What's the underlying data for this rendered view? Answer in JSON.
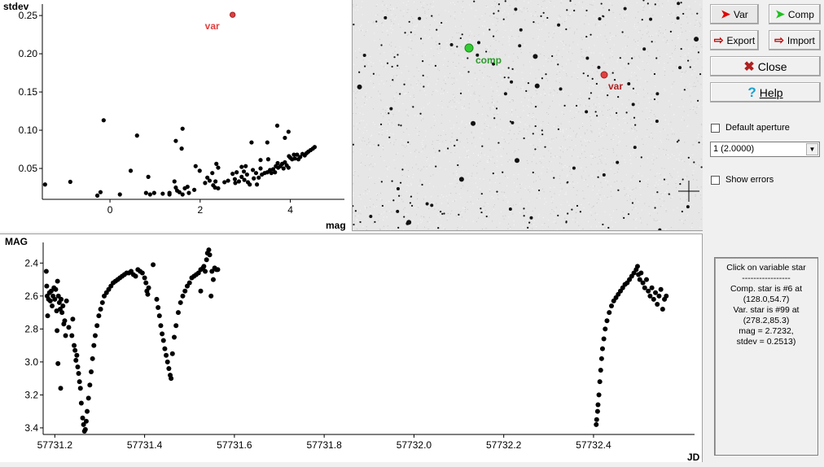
{
  "sidebar": {
    "var_label": "Var",
    "comp_label": "Comp",
    "export_label": "Export",
    "import_label": "Import",
    "close_label": "Close",
    "help_label": "Help",
    "default_aperture_label": "Default aperture",
    "default_aperture_checked": false,
    "aperture_value": "1 (2.0000)",
    "show_errors_label": "Show errors",
    "show_errors_checked": false,
    "info_lines": [
      "Click on variable star",
      "-----------------",
      "Comp. star is #6 at",
      "(128.0,54.7)",
      "Var. star is #99 at",
      "(278.2,85.3)",
      "mag = 2.7232,",
      "stdev = 0.2513)"
    ]
  },
  "image": {
    "comp_label": "comp",
    "var_label": "var",
    "comp_color": "#33cc33",
    "var_color": "#e04040"
  },
  "chart_data": [
    {
      "type": "scatter",
      "xlabel": "mag",
      "ylabel": "stdev",
      "xlim": [
        -1.5,
        5.2
      ],
      "ylim": [
        0.0096,
        0.265
      ],
      "xticks": [
        "0",
        "2",
        "4"
      ],
      "xtick_values": [
        0,
        2,
        4
      ],
      "yticks": [
        "0.05",
        "0.10",
        "0.15",
        "0.20",
        "0.25"
      ],
      "ytick_values": [
        0.05,
        0.1,
        0.15,
        0.2,
        0.25
      ],
      "highlight": {
        "label": "var",
        "mag": 2.72,
        "stdev": 0.251,
        "color": "#e04040"
      },
      "points": [
        [
          -1.44,
          0.029
        ],
        [
          -0.88,
          0.0325
        ],
        [
          -0.28,
          0.0145
        ],
        [
          -0.21,
          0.019
        ],
        [
          -0.14,
          0.113
        ],
        [
          0.22,
          0.016
        ],
        [
          0.46,
          0.047
        ],
        [
          0.6,
          0.093
        ],
        [
          0.8,
          0.018
        ],
        [
          0.85,
          0.039
        ],
        [
          0.89,
          0.016
        ],
        [
          0.98,
          0.018
        ],
        [
          1.17,
          0.017
        ],
        [
          1.32,
          0.018
        ],
        [
          1.32,
          0.016
        ],
        [
          1.43,
          0.033
        ],
        [
          1.46,
          0.086
        ],
        [
          1.46,
          0.025
        ],
        [
          1.49,
          0.021
        ],
        [
          1.54,
          0.019
        ],
        [
          1.59,
          0.076
        ],
        [
          1.61,
          0.102
        ],
        [
          1.61,
          0.016
        ],
        [
          1.66,
          0.024
        ],
        [
          1.72,
          0.026
        ],
        [
          1.75,
          0.018
        ],
        [
          1.87,
          0.022
        ],
        [
          1.9,
          0.053
        ],
        [
          1.99,
          0.047
        ],
        [
          2.11,
          0.031
        ],
        [
          2.16,
          0.038
        ],
        [
          2.21,
          0.034
        ],
        [
          2.27,
          0.044
        ],
        [
          2.29,
          0.028
        ],
        [
          2.34,
          0.033
        ],
        [
          2.33,
          0.025
        ],
        [
          2.36,
          0.056
        ],
        [
          2.4,
          0.051
        ],
        [
          2.4,
          0.024
        ],
        [
          2.54,
          0.032
        ],
        [
          2.62,
          0.034
        ],
        [
          2.72,
          0.043
        ],
        [
          2.77,
          0.036
        ],
        [
          2.81,
          0.045
        ],
        [
          2.78,
          0.031
        ],
        [
          2.86,
          0.033
        ],
        [
          2.92,
          0.052
        ],
        [
          2.92,
          0.039
        ],
        [
          2.97,
          0.046
        ],
        [
          3.01,
          0.053
        ],
        [
          2.98,
          0.035
        ],
        [
          3.04,
          0.042
        ],
        [
          3.06,
          0.032
        ],
        [
          3.1,
          0.029
        ],
        [
          3.14,
          0.084
        ],
        [
          3.17,
          0.048
        ],
        [
          3.19,
          0.037
        ],
        [
          3.24,
          0.044
        ],
        [
          3.26,
          0.029
        ],
        [
          3.3,
          0.038
        ],
        [
          3.34,
          0.061
        ],
        [
          3.34,
          0.05
        ],
        [
          3.37,
          0.042
        ],
        [
          3.43,
          0.044
        ],
        [
          3.49,
          0.084
        ],
        [
          3.51,
          0.062
        ],
        [
          3.49,
          0.045
        ],
        [
          3.55,
          0.048
        ],
        [
          3.58,
          0.044
        ],
        [
          3.62,
          0.049
        ],
        [
          3.66,
          0.045
        ],
        [
          3.68,
          0.053
        ],
        [
          3.71,
          0.106
        ],
        [
          3.72,
          0.057
        ],
        [
          3.73,
          0.051
        ],
        [
          3.78,
          0.053
        ],
        [
          3.82,
          0.056
        ],
        [
          3.85,
          0.05
        ],
        [
          3.88,
          0.09
        ],
        [
          3.88,
          0.058
        ],
        [
          3.92,
          0.054
        ],
        [
          3.96,
          0.098
        ],
        [
          3.96,
          0.051
        ],
        [
          3.97,
          0.066
        ],
        [
          4.0,
          0.064
        ],
        [
          4.04,
          0.062
        ],
        [
          4.08,
          0.068
        ],
        [
          4.1,
          0.063
        ],
        [
          4.15,
          0.068
        ],
        [
          4.18,
          0.062
        ],
        [
          4.22,
          0.065
        ],
        [
          4.27,
          0.069
        ],
        [
          4.32,
          0.067
        ],
        [
          4.36,
          0.07
        ],
        [
          4.4,
          0.072
        ],
        [
          4.45,
          0.074
        ],
        [
          4.5,
          0.076
        ],
        [
          4.54,
          0.078
        ]
      ]
    },
    {
      "type": "scatter",
      "xlabel": "JD",
      "ylabel": "MAG",
      "xlim": [
        57731.174,
        57732.625
      ],
      "ylim": [
        2.275,
        3.44
      ],
      "y_inverted": true,
      "xticks": [
        "57731.2",
        "57731.4",
        "57731.6",
        "57731.8",
        "57732.0",
        "57732.2",
        "57732.4"
      ],
      "xtick_values": [
        57731.2,
        57731.4,
        57731.6,
        57731.8,
        57732.0,
        57732.2,
        57732.4
      ],
      "yticks": [
        "2.4",
        "2.6",
        "2.8",
        "3.0",
        "3.2",
        "3.4"
      ],
      "ytick_values": [
        2.4,
        2.6,
        2.8,
        3.0,
        3.2,
        3.4
      ],
      "points": [
        [
          57731.181,
          2.45
        ],
        [
          57731.182,
          2.54
        ],
        [
          57731.183,
          2.6
        ],
        [
          57731.184,
          2.72
        ],
        [
          57731.186,
          2.62
        ],
        [
          57731.188,
          2.58
        ],
        [
          57731.19,
          2.63
        ],
        [
          57731.192,
          2.57
        ],
        [
          57731.194,
          2.66
        ],
        [
          57731.196,
          2.6
        ],
        [
          57731.198,
          2.55
        ],
        [
          57731.2,
          2.62
        ],
        [
          57731.202,
          2.56
        ],
        [
          57731.204,
          2.69
        ],
        [
          57731.205,
          2.81
        ],
        [
          57731.206,
          2.51
        ],
        [
          57731.207,
          3.01
        ],
        [
          57731.208,
          2.6
        ],
        [
          57731.21,
          2.64
        ],
        [
          57731.212,
          2.68
        ],
        [
          57731.213,
          3.16
        ],
        [
          57731.214,
          2.62
        ],
        [
          57731.216,
          2.7
        ],
        [
          57731.218,
          2.66
        ],
        [
          57731.22,
          2.77
        ],
        [
          57731.222,
          2.75
        ],
        [
          57731.224,
          2.84
        ],
        [
          57731.226,
          2.63
        ],
        [
          57731.231,
          2.79
        ],
        [
          57731.238,
          2.84
        ],
        [
          57731.24,
          2.74
        ],
        [
          57731.243,
          2.9
        ],
        [
          57731.245,
          2.93
        ],
        [
          57731.247,
          2.99
        ],
        [
          57731.249,
          2.96
        ],
        [
          57731.251,
          3.03
        ],
        [
          57731.253,
          3.07
        ],
        [
          57731.255,
          3.12
        ],
        [
          57731.257,
          3.16
        ],
        [
          57731.259,
          3.25
        ],
        [
          57731.262,
          3.34
        ],
        [
          57731.264,
          3.38
        ],
        [
          57731.266,
          3.42
        ],
        [
          57731.268,
          3.41
        ],
        [
          57731.27,
          3.36
        ],
        [
          57731.272,
          3.3
        ],
        [
          57731.275,
          3.22
        ],
        [
          57731.278,
          3.14
        ],
        [
          57731.281,
          3.06
        ],
        [
          57731.284,
          2.98
        ],
        [
          57731.287,
          2.9
        ],
        [
          57731.29,
          2.84
        ],
        [
          57731.294,
          2.78
        ],
        [
          57731.298,
          2.72
        ],
        [
          57731.302,
          2.68
        ],
        [
          57731.306,
          2.64
        ],
        [
          57731.31,
          2.6
        ],
        [
          57731.315,
          2.58
        ],
        [
          57731.32,
          2.56
        ],
        [
          57731.325,
          2.54
        ],
        [
          57731.33,
          2.52
        ],
        [
          57731.335,
          2.51
        ],
        [
          57731.34,
          2.5
        ],
        [
          57731.345,
          2.49
        ],
        [
          57731.35,
          2.48
        ],
        [
          57731.355,
          2.47
        ],
        [
          57731.36,
          2.46
        ],
        [
          57731.365,
          2.46
        ],
        [
          57731.37,
          2.45
        ],
        [
          57731.375,
          2.47
        ],
        [
          57731.38,
          2.48
        ],
        [
          57731.385,
          2.44
        ],
        [
          57731.39,
          2.45
        ],
        [
          57731.395,
          2.46
        ],
        [
          57731.4,
          2.49
        ],
        [
          57731.403,
          2.52
        ],
        [
          57731.405,
          2.57
        ],
        [
          57731.407,
          2.59
        ],
        [
          57731.409,
          2.55
        ],
        [
          57731.419,
          2.41
        ],
        [
          57731.427,
          2.62
        ],
        [
          57731.43,
          2.67
        ],
        [
          57731.433,
          2.72
        ],
        [
          57731.436,
          2.78
        ],
        [
          57731.439,
          2.83
        ],
        [
          57731.442,
          2.87
        ],
        [
          57731.445,
          2.92
        ],
        [
          57731.448,
          2.96
        ],
        [
          57731.451,
          3.0
        ],
        [
          57731.454,
          3.04
        ],
        [
          57731.457,
          3.08
        ],
        [
          57731.459,
          3.1
        ],
        [
          57731.462,
          2.95
        ],
        [
          57731.466,
          2.85
        ],
        [
          57731.47,
          2.78
        ],
        [
          57731.475,
          2.7
        ],
        [
          57731.48,
          2.64
        ],
        [
          57731.485,
          2.6
        ],
        [
          57731.49,
          2.57
        ],
        [
          57731.495,
          2.54
        ],
        [
          57731.5,
          2.52
        ],
        [
          57731.505,
          2.49
        ],
        [
          57731.51,
          2.48
        ],
        [
          57731.515,
          2.47
        ],
        [
          57731.52,
          2.46
        ],
        [
          57731.525,
          2.44
        ],
        [
          57731.525,
          2.57
        ],
        [
          57731.53,
          2.43
        ],
        [
          57731.532,
          2.42
        ],
        [
          57731.535,
          2.45
        ],
        [
          57731.538,
          2.38
        ],
        [
          57731.54,
          2.34
        ],
        [
          57731.543,
          2.32
        ],
        [
          57731.545,
          2.35
        ],
        [
          57731.548,
          2.6
        ],
        [
          57731.55,
          2.45
        ],
        [
          57731.553,
          2.5
        ],
        [
          57731.556,
          2.43
        ],
        [
          57731.56,
          2.44
        ],
        [
          57731.563,
          2.44
        ],
        [
          57732.406,
          3.38
        ],
        [
          57732.407,
          3.35
        ],
        [
          57732.409,
          3.3
        ],
        [
          57732.41,
          3.26
        ],
        [
          57732.412,
          3.2
        ],
        [
          57732.414,
          3.12
        ],
        [
          57732.416,
          3.05
        ],
        [
          57732.418,
          2.98
        ],
        [
          57732.42,
          2.92
        ],
        [
          57732.423,
          2.86
        ],
        [
          57732.426,
          2.8
        ],
        [
          57732.43,
          2.75
        ],
        [
          57732.435,
          2.7
        ],
        [
          57732.44,
          2.66
        ],
        [
          57732.445,
          2.63
        ],
        [
          57732.45,
          2.61
        ],
        [
          57732.455,
          2.59
        ],
        [
          57732.46,
          2.57
        ],
        [
          57732.465,
          2.55
        ],
        [
          57732.47,
          2.53
        ],
        [
          57732.475,
          2.52
        ],
        [
          57732.48,
          2.5
        ],
        [
          57732.485,
          2.48
        ],
        [
          57732.49,
          2.46
        ],
        [
          57732.495,
          2.44
        ],
        [
          57732.498,
          2.42
        ],
        [
          57732.5,
          2.47
        ],
        [
          57732.503,
          2.5
        ],
        [
          57732.506,
          2.46
        ],
        [
          57732.51,
          2.52
        ],
        [
          57732.514,
          2.55
        ],
        [
          57732.518,
          2.5
        ],
        [
          57732.522,
          2.57
        ],
        [
          57732.526,
          2.6
        ],
        [
          57732.53,
          2.55
        ],
        [
          57732.534,
          2.62
        ],
        [
          57732.538,
          2.58
        ],
        [
          57732.542,
          2.65
        ],
        [
          57732.546,
          2.6
        ],
        [
          57732.55,
          2.56
        ],
        [
          57732.554,
          2.68
        ],
        [
          57732.558,
          2.62
        ],
        [
          57732.562,
          2.6
        ]
      ]
    }
  ]
}
